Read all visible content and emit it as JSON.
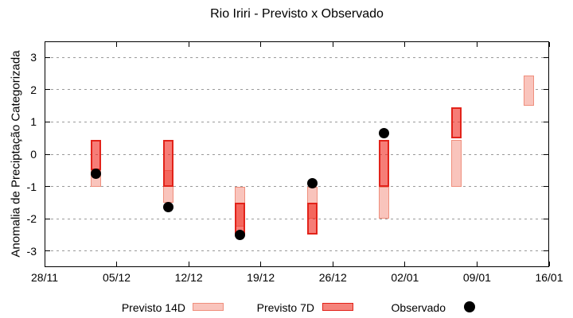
{
  "chart_data": {
    "type": "bar",
    "title": "Rio Iriri - Previsto x Observado",
    "xlabel": "",
    "ylabel": "Anomalia de Preciptação Categorizada",
    "ylim": [
      -3.5,
      3.5
    ],
    "yticks": [
      3,
      2,
      1,
      0,
      -1,
      -2,
      -3
    ],
    "xtick_labels": [
      "28/11",
      "05/12",
      "12/12",
      "19/12",
      "26/12",
      "02/01",
      "09/01",
      "16/01"
    ],
    "xtick_days": [
      0,
      7,
      14,
      21,
      28,
      35,
      42,
      49
    ],
    "x_total_days": 49,
    "grid": "horizontal-dotted",
    "legend_position": "bottom",
    "series": [
      {
        "name": "Previsto 14D",
        "type": "range-bar",
        "points": [
          {
            "date": "03/12",
            "day": 5,
            "low": -1.0,
            "high": -0.5
          },
          {
            "date": "10/12",
            "day": 12,
            "low": -1.5,
            "high": -0.5
          },
          {
            "date": "17/12",
            "day": 19,
            "low": -2.25,
            "high": -1.0
          },
          {
            "date": "24/12",
            "day": 26,
            "low": -2.0,
            "high": -1.0
          },
          {
            "date": "31/12",
            "day": 33,
            "low": -2.0,
            "high": -1.0
          },
          {
            "date": "07/01",
            "day": 40,
            "low": -1.0,
            "high": 0.45
          },
          {
            "date": "14/01",
            "day": 47,
            "low": 1.5,
            "high": 2.45
          }
        ]
      },
      {
        "name": "Previsto 7D",
        "type": "range-bar",
        "points": [
          {
            "date": "03/12",
            "day": 5,
            "low": -0.5,
            "high": 0.45
          },
          {
            "date": "10/12",
            "day": 12,
            "low": -1.0,
            "high": 0.45
          },
          {
            "date": "17/12",
            "day": 19,
            "low": -2.5,
            "high": -1.5
          },
          {
            "date": "24/12",
            "day": 26,
            "low": -2.5,
            "high": -1.5
          },
          {
            "date": "31/12",
            "day": 33,
            "low": -1.0,
            "high": 0.45
          },
          {
            "date": "07/01",
            "day": 40,
            "low": 0.5,
            "high": 1.45
          }
        ]
      },
      {
        "name": "Observado",
        "type": "scatter",
        "points": [
          {
            "date": "03/12",
            "day": 5,
            "value": -0.6
          },
          {
            "date": "10/12",
            "day": 12,
            "value": -1.65
          },
          {
            "date": "17/12",
            "day": 19,
            "value": -2.5
          },
          {
            "date": "24/12",
            "day": 26,
            "value": -0.9
          },
          {
            "date": "31/12",
            "day": 33,
            "value": 0.65
          }
        ]
      }
    ],
    "colors": {
      "previsto_14d_fill": "#f9c4bc",
      "previsto_14d_border": "#ef8f7d",
      "previsto_7d_fill": "#f5837b",
      "previsto_7d_border": "#e2231a",
      "overlap_fill": "#f15e55",
      "observado": "#000000",
      "grid": "#9a9a9a",
      "plot_border": "#000000",
      "background": "#ffffff"
    }
  }
}
